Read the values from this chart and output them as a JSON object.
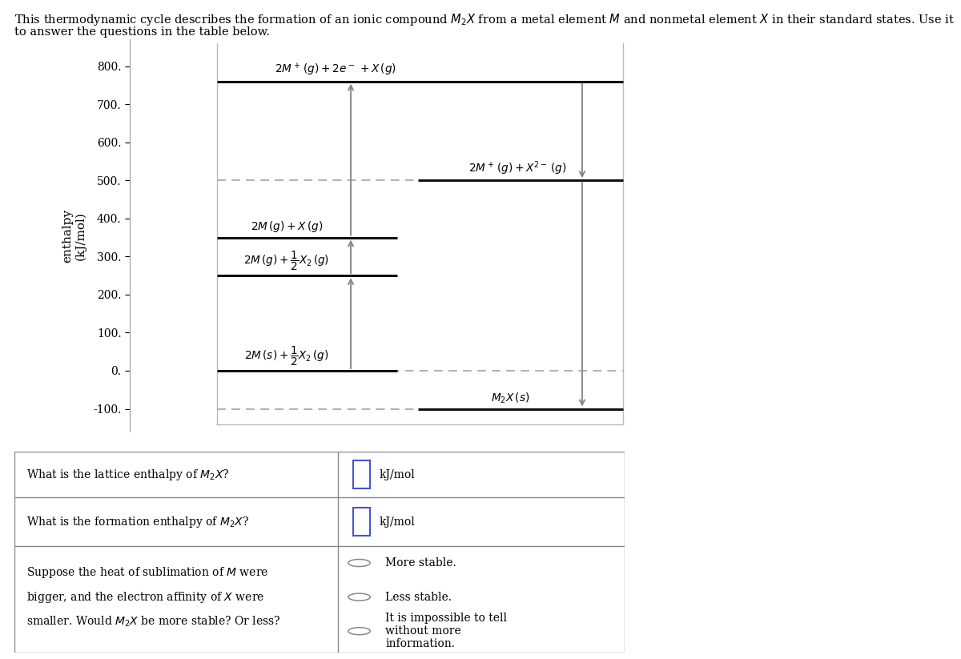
{
  "title_line1": "This thermodynamic cycle describes the formation of an ionic compound $M_2 X$ from a metal element $M$ and nonmetal element $X$ in their standard states. Use it",
  "title_line2": "to answer the questions in the table below.",
  "ylim": [
    -160,
    870
  ],
  "yticks": [
    -100,
    0,
    100,
    200,
    300,
    400,
    500,
    600,
    700,
    800
  ],
  "levels": {
    "reference": 0,
    "M2X_solid": -100,
    "sublimed": 250,
    "dissociated": 350,
    "ion_pair": 500,
    "ionized": 760
  },
  "bg_color": "#ffffff",
  "level_color": "#111111",
  "level_lw": 2.2,
  "dashed_color": "#aaaaaa",
  "dashed_lw": 1.3,
  "arrow_color": "#888888",
  "arrow_lw": 1.4,
  "rect_color": "#bbbbbb",
  "axis_color": "#999999",
  "table_border": "#888888"
}
